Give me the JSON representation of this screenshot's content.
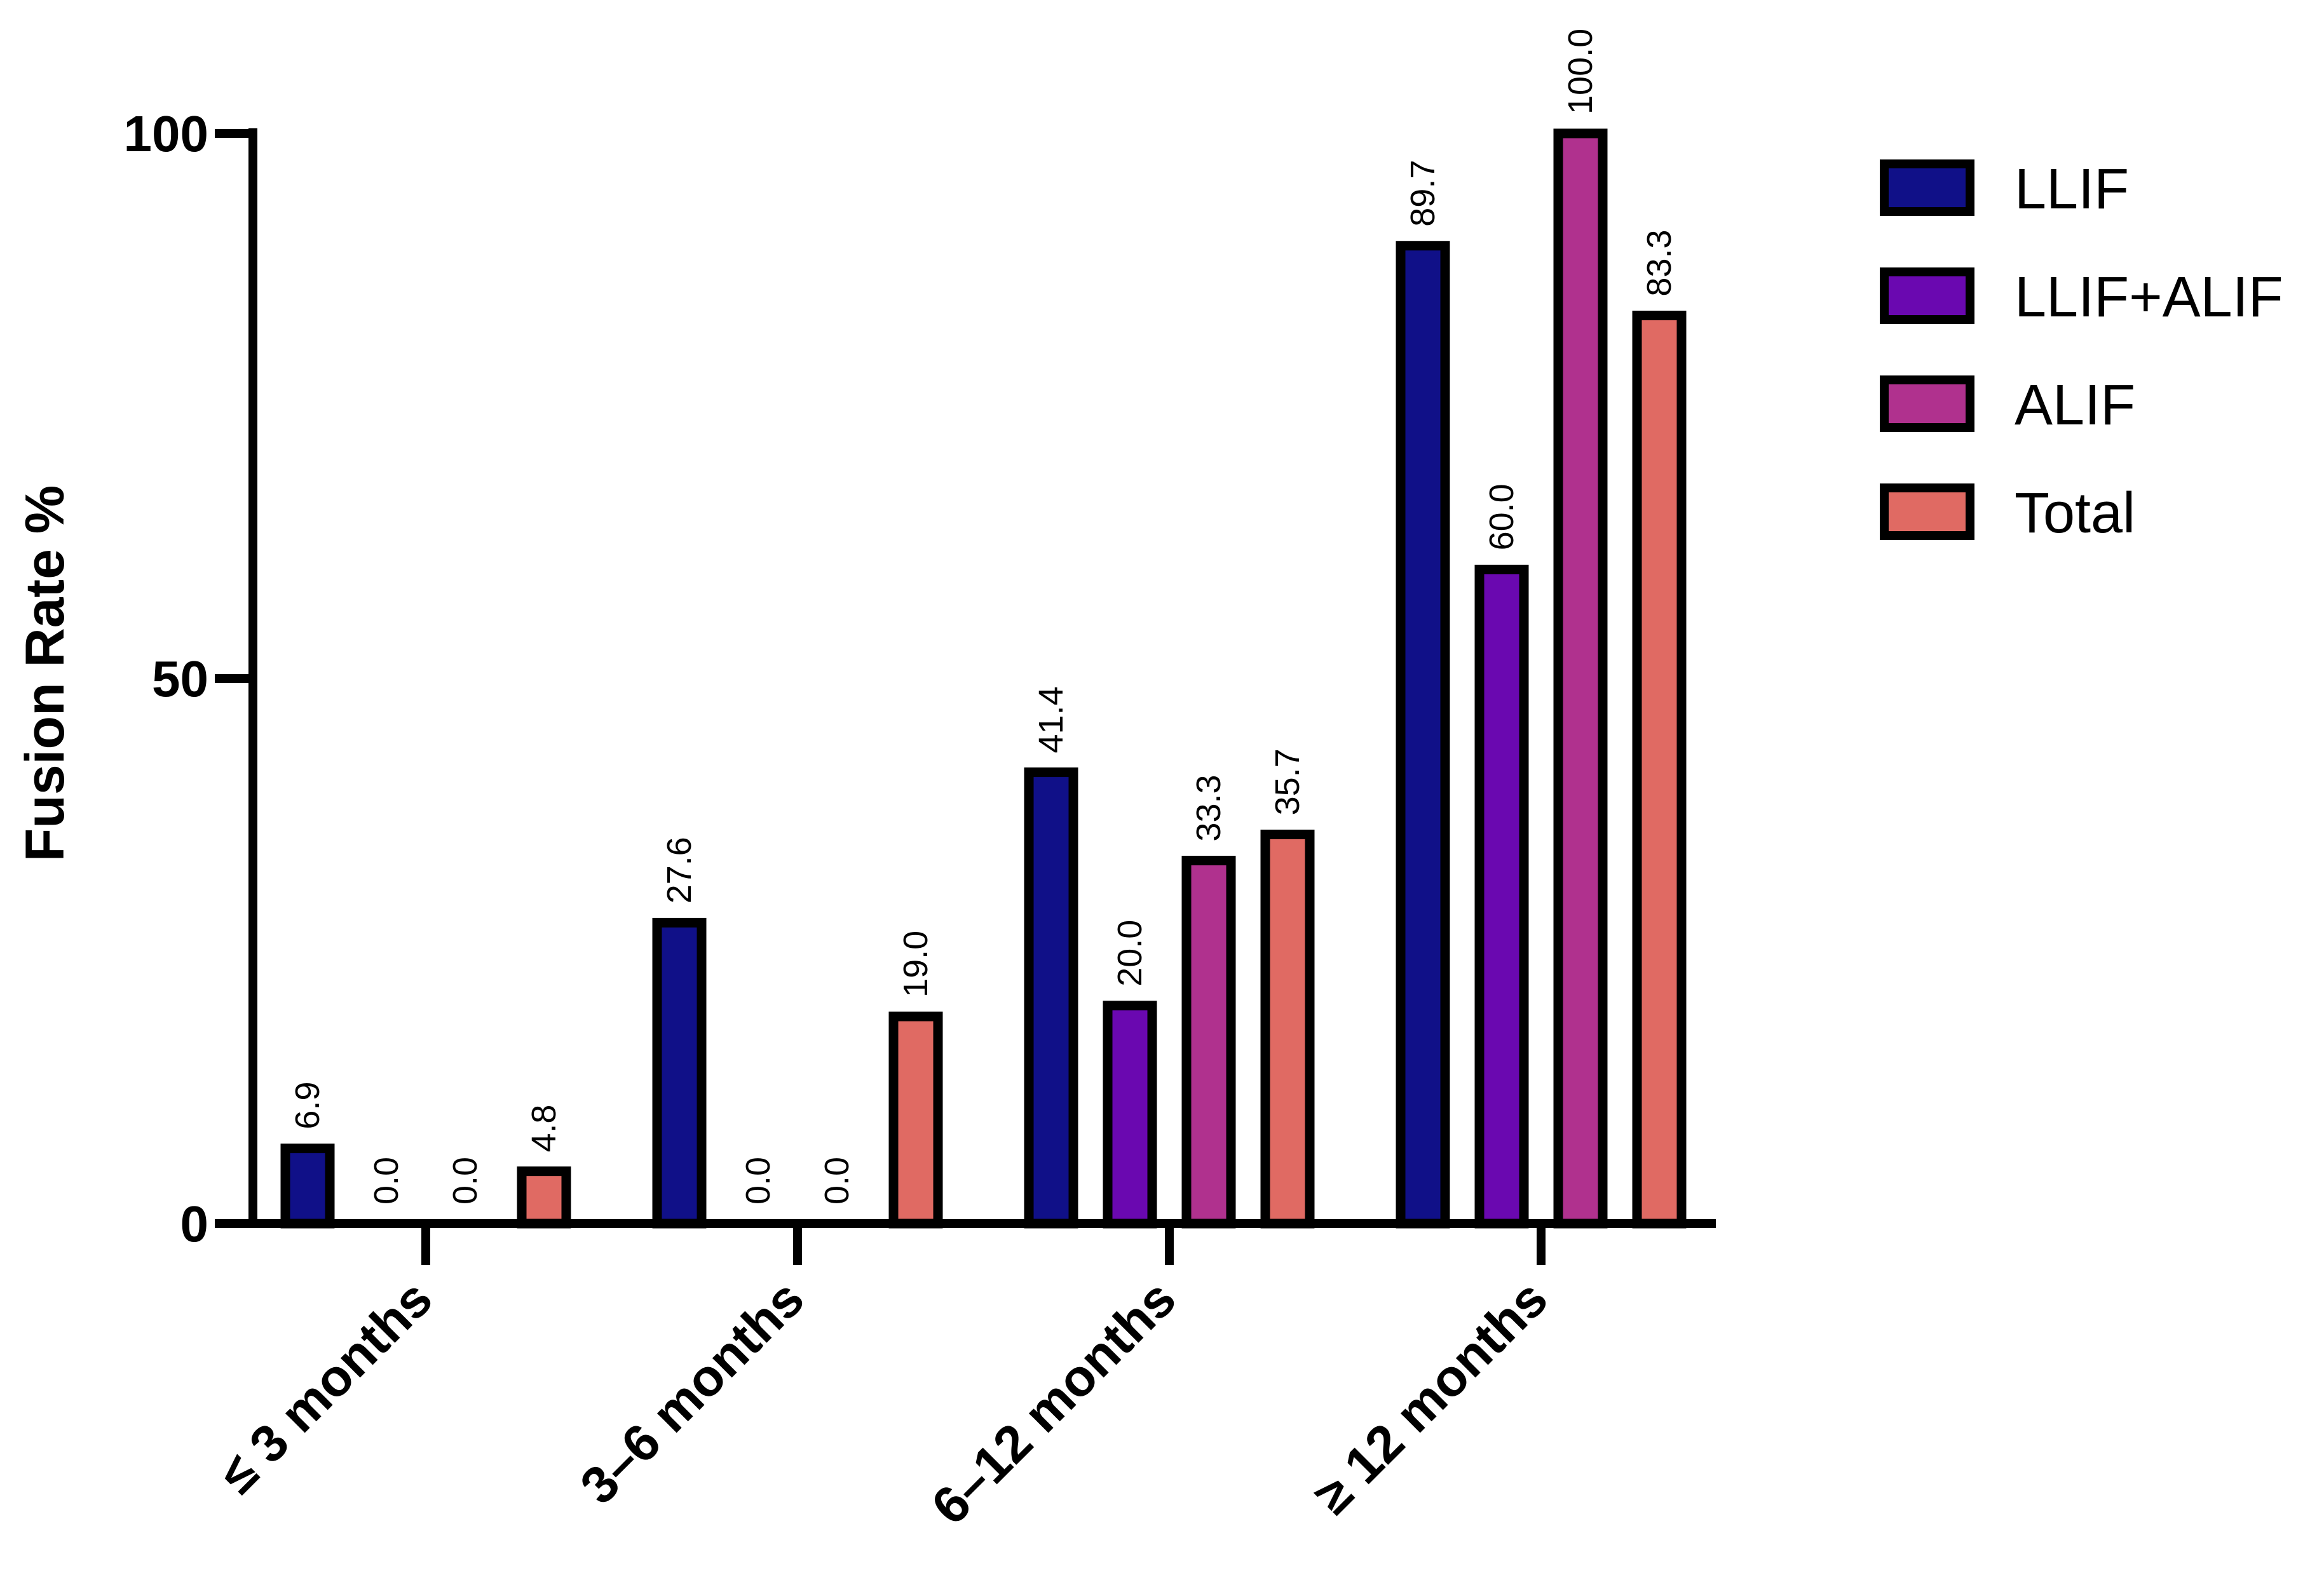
{
  "chart_data": {
    "type": "bar",
    "title": "",
    "xlabel": "",
    "ylabel": "Fusion Rate %",
    "ylim": [
      0,
      100
    ],
    "yticks": [
      0,
      50,
      100
    ],
    "ytick_labels": [
      "0",
      "50",
      "100"
    ],
    "grid": false,
    "legend_position": "top-right",
    "categories": [
      "≤ 3 months",
      "3–6 months",
      "6–12 months",
      "≥ 12 months"
    ],
    "series": [
      {
        "name": "LLIF",
        "color": "#101088",
        "values": [
          6.9,
          27.6,
          41.4,
          89.7
        ],
        "labels": [
          "6.9",
          "27.6",
          "41.4",
          "89.7"
        ]
      },
      {
        "name": "LLIF+ALIF",
        "color": "#6A08B0",
        "values": [
          0.0,
          0.0,
          20.0,
          60.0
        ],
        "labels": [
          "0.0",
          "0.0",
          "20.0",
          "60.0"
        ]
      },
      {
        "name": "ALIF",
        "color": "#B0318E",
        "values": [
          0.0,
          0.0,
          33.3,
          100.0
        ],
        "labels": [
          "0.0",
          "0.0",
          "33.3",
          "100.0"
        ]
      },
      {
        "name": "Total",
        "color": "#E06A63",
        "values": [
          4.8,
          19.0,
          35.7,
          83.3
        ],
        "labels": [
          "4.8",
          "19.0",
          "35.7",
          "83.3"
        ]
      }
    ]
  }
}
